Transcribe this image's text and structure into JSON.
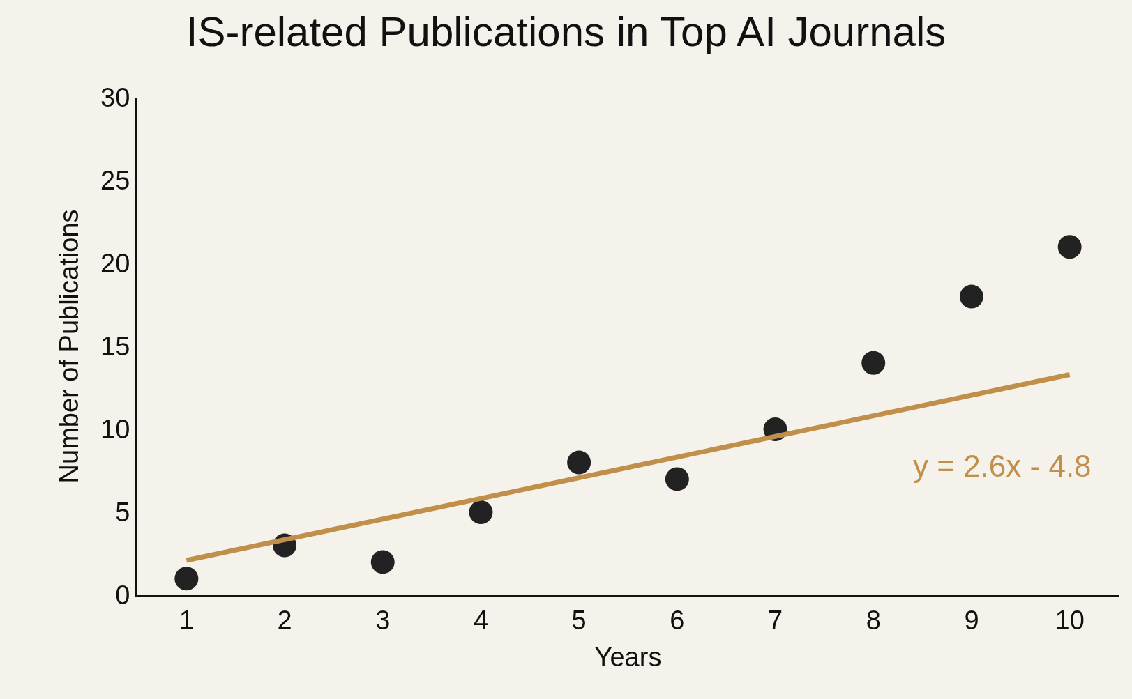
{
  "chart_data": {
    "type": "scatter",
    "title": "IS-related Publications in Top AI Journals",
    "xlabel": "Years",
    "ylabel": "Number of Publications",
    "x": [
      1,
      2,
      3,
      4,
      5,
      6,
      7,
      8,
      9,
      10
    ],
    "series": [
      {
        "color": "#222222",
        "values": [
          1,
          3,
          2,
          5,
          8,
          7,
          10,
          14,
          18,
          21
        ],
        "marker": "circle"
      },
      {
        "type": "line",
        "color": "#c08f4a",
        "x": [
          1,
          10
        ],
        "values": [
          2.1,
          13.3
        ]
      }
    ],
    "annotations": [
      "y = 2.6x - 4.8"
    ],
    "xlim": [
      0.5,
      10.5
    ],
    "xticks": [
      1,
      2,
      3,
      4,
      5,
      6,
      7,
      8,
      9,
      10
    ],
    "ylim": [
      0,
      30
    ],
    "yticks": [
      0,
      5,
      10,
      15,
      20,
      25,
      30
    ],
    "grid": false
  }
}
